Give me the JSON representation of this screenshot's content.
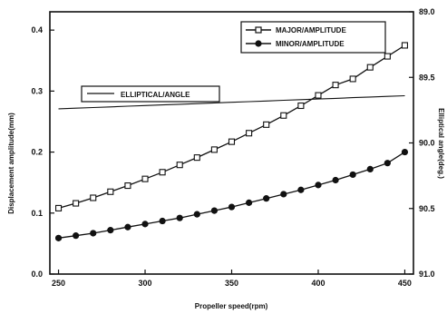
{
  "chart_data": {
    "type": "line",
    "x": [
      250,
      260,
      270,
      280,
      290,
      300,
      310,
      320,
      330,
      340,
      350,
      360,
      370,
      380,
      390,
      400,
      410,
      420,
      430,
      440,
      450
    ],
    "xlabel": "Propeller speed(rpm)",
    "xlim": [
      245,
      455
    ],
    "xticks": [
      "250",
      "300",
      "350",
      "400",
      "450"
    ],
    "ylabel": "Displacement amplitude(mm)",
    "ylim": [
      0.0,
      0.43
    ],
    "yticks": [
      "0.0",
      "0.1",
      "0.2",
      "0.3",
      "0.4"
    ],
    "y2label": "Elliptical angle(deg.)",
    "y2lim": [
      89.0,
      91.0
    ],
    "y2_inverted": true,
    "y2ticks": [
      "89.0",
      "89.5",
      "90.0",
      "90.5",
      "91.0"
    ],
    "grid": false,
    "series": [
      {
        "name": "MAJOR/AMPLITUDE",
        "axis": "left",
        "marker": "open-square",
        "values": [
          0.108,
          0.116,
          0.125,
          0.135,
          0.145,
          0.156,
          0.167,
          0.179,
          0.191,
          0.204,
          0.217,
          0.231,
          0.245,
          0.26,
          0.276,
          0.293,
          0.31,
          0.32,
          0.339,
          0.357,
          0.375
        ]
      },
      {
        "name": "MINOR/AMPLITUDE",
        "axis": "left",
        "marker": "filled-circle",
        "values": [
          0.059,
          0.063,
          0.067,
          0.072,
          0.077,
          0.082,
          0.087,
          0.092,
          0.098,
          0.104,
          0.11,
          0.117,
          0.124,
          0.131,
          0.138,
          0.146,
          0.154,
          0.163,
          0.172,
          0.182,
          0.2
        ]
      },
      {
        "name": "ELLIPTICAL/ANGLE",
        "axis": "right",
        "marker": "none",
        "values": [
          89.74,
          89.735,
          89.73,
          89.725,
          89.72,
          89.715,
          89.71,
          89.705,
          89.7,
          89.695,
          89.69,
          89.685,
          89.68,
          89.675,
          89.67,
          89.665,
          89.66,
          89.655,
          89.65,
          89.645,
          89.64
        ]
      }
    ],
    "legend": {
      "amplitude_placement": "top-right",
      "angle_placement": "upper-left"
    }
  }
}
